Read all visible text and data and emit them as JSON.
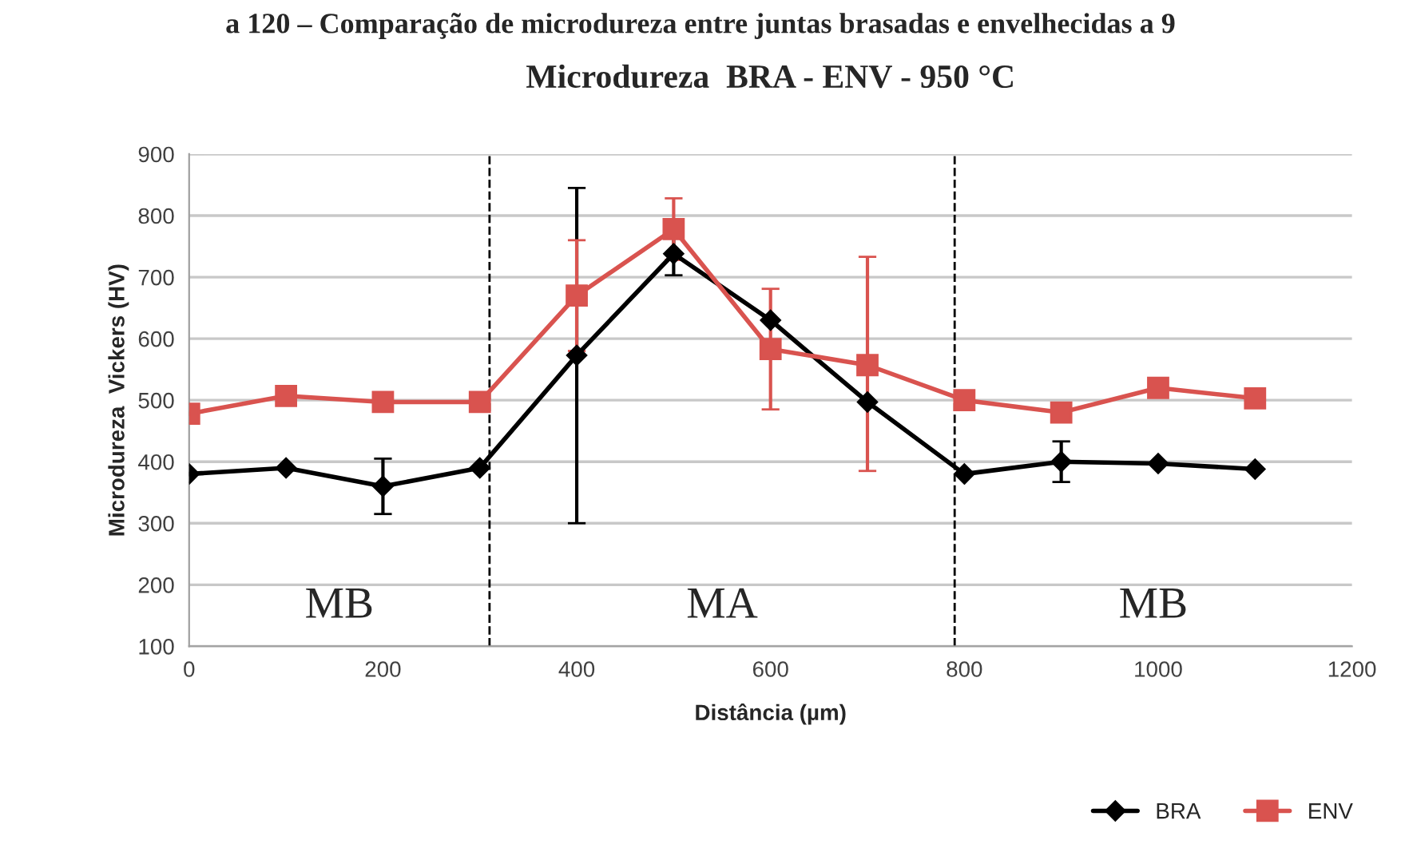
{
  "chart_data": {
    "type": "line",
    "title": "Microdureza  BRA - ENV - 950 °C",
    "xlabel": "Distância (µm)",
    "ylabel": "Microdureza  Vickers (HV)",
    "x": [
      0,
      100,
      200,
      300,
      400,
      500,
      600,
      700,
      800,
      900,
      1000,
      1100
    ],
    "series": [
      {
        "name": "BRA",
        "color": "#000000",
        "marker": "diamond",
        "values": [
          380,
          390,
          360,
          390,
          573,
          738,
          630,
          497,
          380,
          400,
          397,
          388
        ],
        "errors": [
          null,
          null,
          45,
          null,
          [
            300,
            845
          ],
          35,
          null,
          null,
          null,
          33,
          null,
          null
        ]
      },
      {
        "name": "ENV",
        "color": "#d9534f",
        "marker": "square",
        "values": [
          478,
          507,
          497,
          497,
          670,
          778,
          583,
          557,
          500,
          480,
          520,
          503
        ],
        "errors": [
          null,
          null,
          null,
          null,
          90,
          50,
          98,
          [
            385,
            733
          ],
          null,
          null,
          null,
          null
        ]
      }
    ],
    "xlim": [
      0,
      1200
    ],
    "xticks": [
      0,
      200,
      400,
      600,
      800,
      1000,
      1200
    ],
    "ylim": [
      100,
      900
    ],
    "yticks": [
      100,
      200,
      300,
      400,
      500,
      600,
      700,
      800,
      900
    ],
    "grid": "y",
    "legend": "bottom right",
    "ref_lines": [
      {
        "axis": "x",
        "value": 310,
        "color": "#000000",
        "line_style": "dashed"
      },
      {
        "axis": "x",
        "value": 790,
        "color": "#000000",
        "line_style": "dashed"
      }
    ],
    "annotations": [
      "a 120 – Comparação de microdureza entre juntas brasadas e envelhecidas a 9",
      "MB",
      "MA",
      "MB"
    ]
  }
}
